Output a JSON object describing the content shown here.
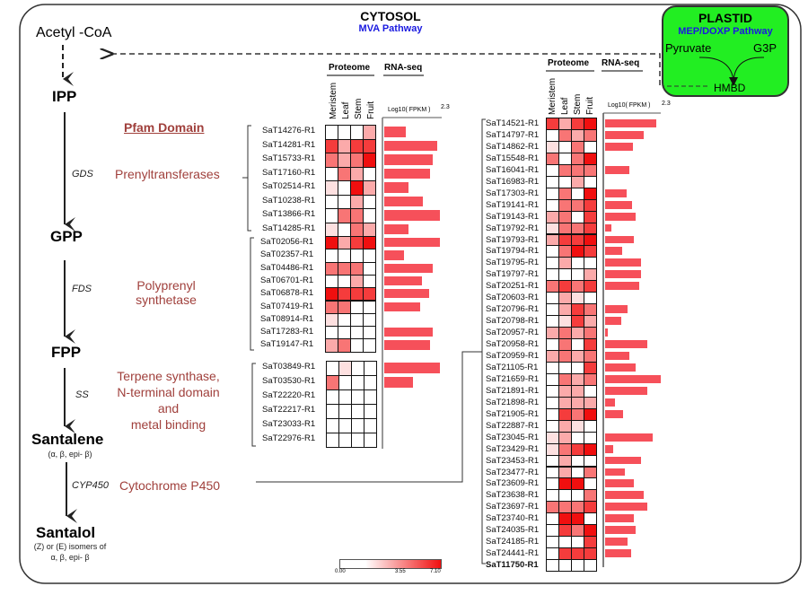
{
  "cytosol": {
    "title": "CYTOSOL",
    "subtitle": "MVA Pathway",
    "accent": "#1a1ae0"
  },
  "plastid": {
    "title": "PLASTID",
    "subtitle": "MEP/DOXP Pathway",
    "pyruvate": "Pyruvate",
    "g3p": "G3P",
    "hmbd": "HMBD",
    "color": "#22ee22"
  },
  "pathway": {
    "acetyl_coa": "Acetyl -CoA",
    "ipp": "IPP",
    "gpp": "GPP",
    "fpp": "FPP",
    "santalene": "Santalene",
    "santalene_sub": "(α, β, epi- β)",
    "santalol": "Santalol",
    "santalol_sub1": "(Z) or (E) isomers of",
    "santalol_sub2": "α, β, epi- β",
    "enzymes": {
      "gds": "GDS",
      "fds": "FDS",
      "ss": "SS",
      "cyp": "CYP450"
    }
  },
  "domains": {
    "header": "Pfam Domain",
    "prenyl": "Prenyltransferases",
    "polyprenyl1": "Polyprenyl",
    "polyprenyl2": "synthetase",
    "terpene1": "Terpene synthase,",
    "terpene2": "N-terminal domain",
    "terpene3": "and",
    "terpene4": "metal binding",
    "cyp": "Cytochrome P450",
    "color": "#a0403c"
  },
  "headers": {
    "proteome": "Proteome",
    "rnaseq": "RNA-seq",
    "tissues": [
      "Meristem",
      "Leaf",
      "Stem",
      "Fruit"
    ],
    "axis_label": "Log10( FPKM )",
    "axis_max": "2.3"
  },
  "scale": {
    "min": "0.00",
    "mid": "3.55",
    "max": "7.10",
    "levels": [
      "#ffffff",
      "#fde0e0",
      "#fbaaaa",
      "#f87575",
      "#f53c3c",
      "#f00f0f"
    ]
  },
  "blocks": [
    {
      "genes": [
        {
          "id": "SaT14276-R1",
          "p": [
            0,
            0,
            0,
            2
          ],
          "rna": 0.9
        },
        {
          "id": "SaT14281-R1",
          "p": [
            4,
            2,
            4,
            4
          ],
          "rna": 2.2
        },
        {
          "id": "SaT15733-R1",
          "p": [
            3,
            2,
            3,
            5
          ],
          "rna": 2.0
        },
        {
          "id": "SaT17160-R1",
          "p": [
            0,
            3,
            2,
            0
          ],
          "rna": 1.9
        },
        {
          "id": "SaT02514-R1",
          "p": [
            1,
            0,
            5,
            2
          ],
          "rna": 1.0
        },
        {
          "id": "SaT10238-R1",
          "p": [
            0,
            0,
            2,
            0
          ],
          "rna": 1.6
        },
        {
          "id": "SaT13866-R1",
          "p": [
            0,
            3,
            3,
            0
          ],
          "rna": 2.3
        },
        {
          "id": "SaT14285-R1",
          "p": [
            1,
            0,
            3,
            2
          ],
          "rna": 1.0
        }
      ]
    },
    {
      "genes": [
        {
          "id": "SaT02056-R1",
          "p": [
            5,
            2,
            4,
            5
          ],
          "rna": 2.3
        },
        {
          "id": "SaT02357-R1",
          "p": [
            0,
            0,
            0,
            0
          ],
          "rna": 0.8
        },
        {
          "id": "SaT04486-R1",
          "p": [
            3,
            3,
            3,
            0
          ],
          "rna": 2.0
        },
        {
          "id": "SaT06701-R1",
          "p": [
            0,
            0,
            2,
            0
          ],
          "rna": 1.55
        },
        {
          "id": "SaT06878-R1",
          "p": [
            5,
            4,
            4,
            4
          ],
          "rna": 1.85
        },
        {
          "id": "SaT07419-R1",
          "p": [
            3,
            3,
            0,
            0
          ],
          "rna": 1.5
        },
        {
          "id": "SaT08914-R1",
          "p": [
            1,
            0,
            0,
            0
          ],
          "rna": 0
        },
        {
          "id": "SaT17283-R1",
          "p": [
            0,
            0,
            0,
            0
          ],
          "rna": 2.0
        },
        {
          "id": "SaT19147-R1",
          "p": [
            2,
            3,
            0,
            0
          ],
          "rna": 1.9
        }
      ]
    },
    {
      "genes": [
        {
          "id": "SaT03849-R1",
          "p": [
            0,
            1,
            0,
            0
          ],
          "rna": 2.3
        },
        {
          "id": "SaT03530-R1",
          "p": [
            3,
            0,
            0,
            0
          ],
          "rna": 1.2
        },
        {
          "id": "SaT22220-R1",
          "p": [
            0,
            0,
            0,
            0
          ],
          "rna": 0
        },
        {
          "id": "SaT22217-R1",
          "p": [
            0,
            0,
            0,
            0
          ],
          "rna": 0
        },
        {
          "id": "SaT23033-R1",
          "p": [
            0,
            0,
            0,
            0
          ],
          "rna": 0
        },
        {
          "id": "SaT22976-R1",
          "p": [
            0,
            0,
            0,
            0
          ],
          "rna": 0
        }
      ]
    },
    {
      "genes": [
        {
          "id": "SaT14521-R1",
          "p": [
            4,
            2,
            4,
            5
          ],
          "rna": 2.1
        },
        {
          "id": "SaT14797-R1",
          "p": [
            0,
            3,
            2,
            3
          ],
          "rna": 1.6
        },
        {
          "id": "SaT14862-R1",
          "p": [
            1,
            0,
            3,
            0
          ],
          "rna": 1.15
        },
        {
          "id": "SaT15548-R1",
          "p": [
            3,
            0,
            3,
            5
          ],
          "rna": 0
        },
        {
          "id": "SaT16041-R1",
          "p": [
            0,
            3,
            3,
            3
          ],
          "rna": 1.0
        },
        {
          "id": "SaT16983-R1",
          "p": [
            0,
            0,
            2,
            0
          ],
          "rna": 0
        },
        {
          "id": "SaT17303-R1",
          "p": [
            0,
            3,
            0,
            5
          ],
          "rna": 0.9
        },
        {
          "id": "SaT19141-R1",
          "p": [
            0,
            3,
            3,
            4
          ],
          "rna": 1.1
        },
        {
          "id": "SaT19143-R1",
          "p": [
            2,
            3,
            0,
            4
          ],
          "rna": 1.25
        },
        {
          "id": "SaT19792-R1",
          "p": [
            1,
            3,
            3,
            4
          ],
          "rna": 0.27
        },
        {
          "id": "SaT19793-R1",
          "p": [
            2,
            4,
            4,
            5
          ],
          "rna": 1.2
        },
        {
          "id": "SaT19794-R1",
          "p": [
            0,
            3,
            5,
            4
          ],
          "rna": 0.7
        },
        {
          "id": "SaT19795-R1",
          "p": [
            0,
            2,
            0,
            0
          ],
          "rna": 1.47
        },
        {
          "id": "SaT19797-R1",
          "p": [
            0,
            0,
            0,
            2
          ],
          "rna": 1.48
        },
        {
          "id": "SaT20251-R1",
          "p": [
            3,
            4,
            3,
            4
          ],
          "rna": 1.4
        },
        {
          "id": "SaT20603-R1",
          "p": [
            0,
            2,
            1,
            0
          ],
          "rna": 0
        },
        {
          "id": "SaT20796-R1",
          "p": [
            0,
            2,
            4,
            3
          ],
          "rna": 0.93
        },
        {
          "id": "SaT20798-R1",
          "p": [
            0,
            1,
            4,
            2
          ],
          "rna": 0.65
        },
        {
          "id": "SaT20957-R1",
          "p": [
            2,
            3,
            2,
            3
          ],
          "rna": 0.1
        },
        {
          "id": "SaT20958-R1",
          "p": [
            0,
            3,
            0,
            4
          ],
          "rna": 1.75
        },
        {
          "id": "SaT20959-R1",
          "p": [
            2,
            3,
            2,
            3
          ],
          "rna": 1.0
        },
        {
          "id": "SaT21105-R1",
          "p": [
            0,
            0,
            0,
            4
          ],
          "rna": 1.27
        },
        {
          "id": "SaT21659-R1",
          "p": [
            0,
            3,
            2,
            3
          ],
          "rna": 2.3
        },
        {
          "id": "SaT21891-R1",
          "p": [
            0,
            2,
            2,
            0
          ],
          "rna": 1.75
        },
        {
          "id": "SaT21898-R1",
          "p": [
            0,
            2,
            2,
            2
          ],
          "rna": 0.42
        },
        {
          "id": "SaT21905-R1",
          "p": [
            0,
            4,
            3,
            5
          ],
          "rna": 0.75
        },
        {
          "id": "SaT22887-R1",
          "p": [
            0,
            2,
            1,
            0
          ],
          "rna": 0
        },
        {
          "id": "SaT23045-R1",
          "p": [
            1,
            2,
            0,
            0
          ],
          "rna": 1.98
        },
        {
          "id": "SaT23429-R1",
          "p": [
            1,
            3,
            4,
            5
          ],
          "rna": 0.35
        },
        {
          "id": "SaT23453-R1",
          "p": [
            0,
            2,
            0,
            0
          ],
          "rna": 1.47
        },
        {
          "id": "SaT23477-R1",
          "p": [
            0,
            2,
            0,
            3
          ],
          "rna": 0.8
        },
        {
          "id": "SaT23609-R1",
          "p": [
            0,
            5,
            5,
            0
          ],
          "rna": 1.2
        },
        {
          "id": "SaT23638-R1",
          "p": [
            0,
            0,
            0,
            3
          ],
          "rna": 1.6
        },
        {
          "id": "SaT23697-R1",
          "p": [
            3,
            3,
            3,
            4
          ],
          "rna": 1.75
        },
        {
          "id": "SaT23740-R1",
          "p": [
            0,
            5,
            5,
            0
          ],
          "rna": 1.2
        },
        {
          "id": "SaT24035-R1",
          "p": [
            0,
            4,
            3,
            5
          ],
          "rna": 1.27
        },
        {
          "id": "SaT24185-R1",
          "p": [
            0,
            0,
            0,
            4
          ],
          "rna": 0.93
        },
        {
          "id": "SaT24441-R1",
          "p": [
            0,
            4,
            4,
            4
          ],
          "rna": 1.06
        },
        {
          "id": "SaT11750-R1",
          "p": [
            0,
            0,
            0,
            0
          ],
          "rna": 0,
          "bold": true
        }
      ]
    }
  ]
}
